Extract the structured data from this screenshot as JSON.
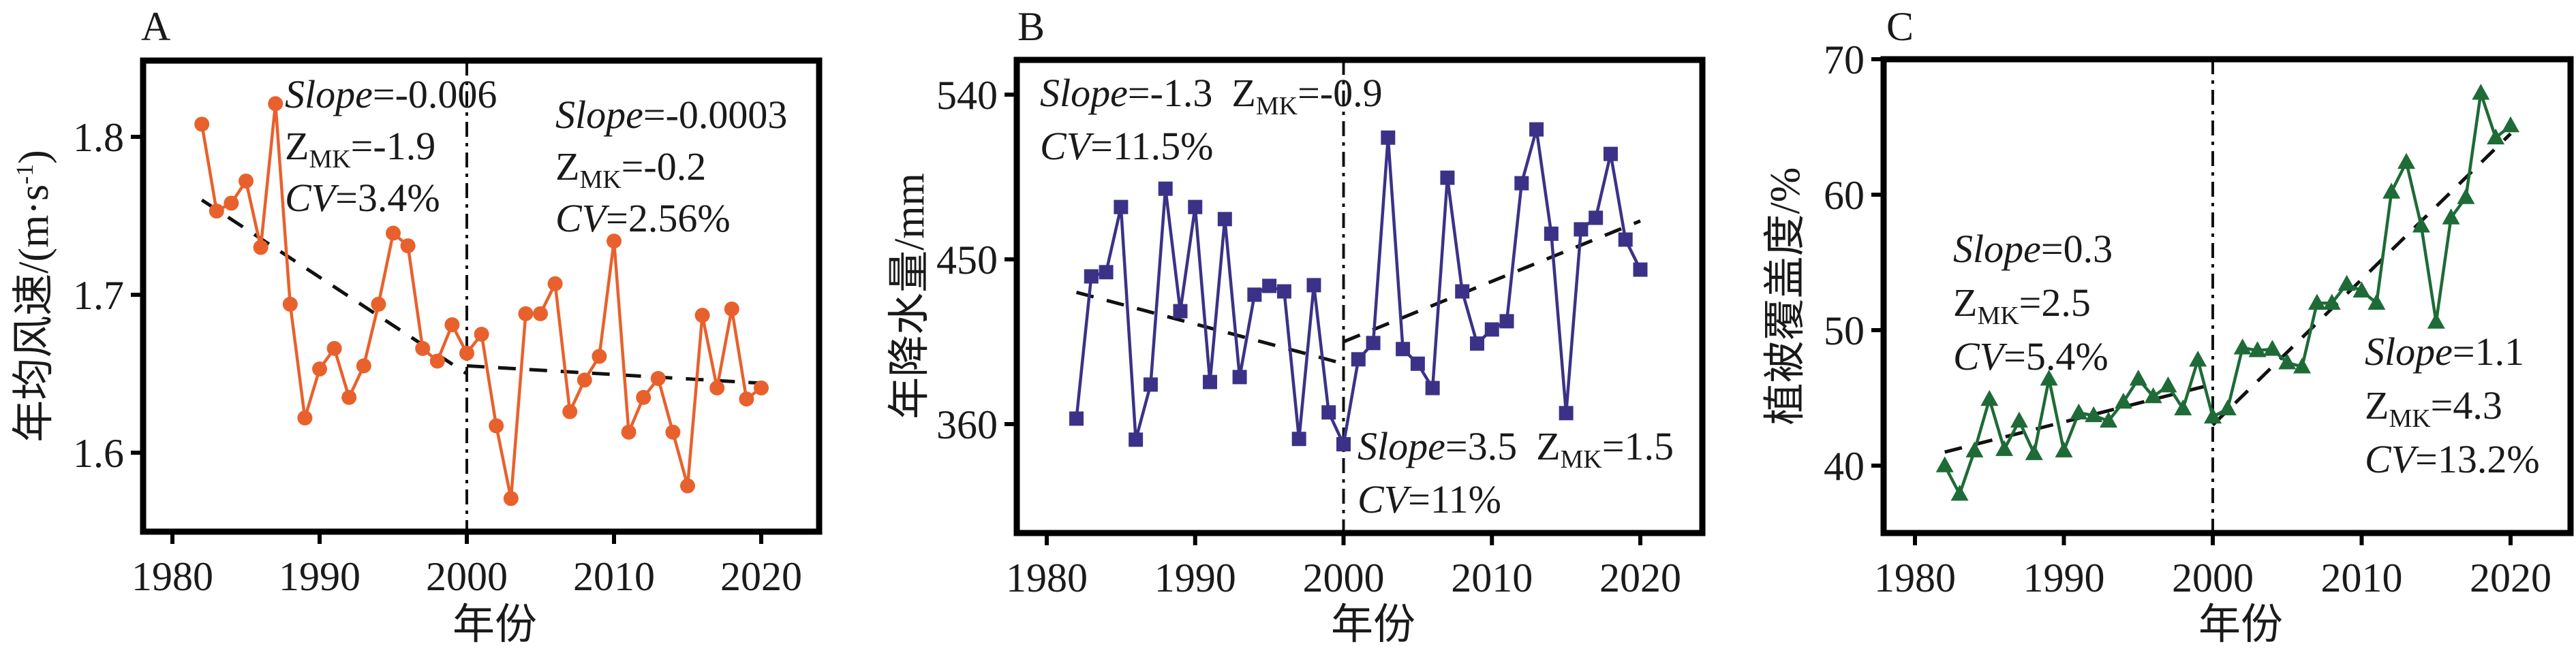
{
  "chart_data": [
    {
      "panel": "A",
      "type": "line",
      "xlabel": "年份",
      "ylabel": "年均风速/(m·s-1)",
      "ylabel_parts": {
        "main": "年均风速/(m·s",
        "sup": "-1",
        "close": ")"
      },
      "xlim": [
        1978,
        2024
      ],
      "ylim": [
        1.55,
        1.848
      ],
      "xticks": [
        1980,
        1990,
        2000,
        2010,
        2020
      ],
      "xtick_labels": [
        "1980",
        "1990",
        "2000",
        "2010",
        "2020"
      ],
      "yticks": [
        1.6,
        1.7,
        1.8
      ],
      "ytick_labels": [
        "1.6",
        "1.7",
        "1.8"
      ],
      "marker": "circle",
      "color": "#e8612c",
      "breakpoint_year": 2000,
      "x": [
        1982,
        1983,
        1984,
        1985,
        1986,
        1987,
        1988,
        1989,
        1990,
        1991,
        1992,
        1993,
        1994,
        1995,
        1996,
        1997,
        1998,
        1999,
        2000,
        2001,
        2002,
        2003,
        2004,
        2005,
        2006,
        2007,
        2008,
        2009,
        2010,
        2011,
        2012,
        2013,
        2014,
        2015,
        2016,
        2017,
        2018,
        2019,
        2020
      ],
      "values": [
        1.808,
        1.753,
        1.758,
        1.772,
        1.73,
        1.821,
        1.694,
        1.622,
        1.653,
        1.666,
        1.635,
        1.655,
        1.694,
        1.739,
        1.731,
        1.666,
        1.658,
        1.681,
        1.663,
        1.675,
        1.617,
        1.571,
        1.688,
        1.688,
        1.707,
        1.626,
        1.646,
        1.661,
        1.734,
        1.613,
        1.635,
        1.647,
        1.613,
        1.579,
        1.687,
        1.641,
        1.691,
        1.634,
        1.641
      ],
      "trends": [
        {
          "x": [
            1982,
            2000
          ],
          "y": [
            1.76,
            1.65
          ]
        },
        {
          "x": [
            2000,
            2020
          ],
          "y": [
            1.655,
            1.644
          ]
        }
      ],
      "annotations": [
        {
          "slope_label": "Slope",
          "slope_value": "=-0.006",
          "z_label": "Z",
          "z_sub": "MK",
          "z_value": "=-1.9",
          "cv_label": "CV",
          "cv_value": "=3.4%"
        },
        {
          "slope_label": "Slope",
          "slope_value": "=-0.0003",
          "z_label": "Z",
          "z_sub": "MK",
          "z_value": "=-0.2",
          "cv_label": "CV",
          "cv_value": "=2.56%"
        }
      ]
    },
    {
      "panel": "B",
      "type": "line",
      "xlabel": "年份",
      "ylabel": "年降水量/mm",
      "xlim": [
        1978,
        2024
      ],
      "ylim": [
        300.5,
        559
      ],
      "xticks": [
        1980,
        1990,
        2000,
        2010,
        2020
      ],
      "xtick_labels": [
        "1980",
        "1990",
        "2000",
        "2010",
        "2020"
      ],
      "yticks": [
        360,
        450,
        540
      ],
      "ytick_labels": [
        "360",
        "450",
        "540"
      ],
      "marker": "square",
      "color": "#3b3287",
      "breakpoint_year": 2000,
      "x": [
        1982,
        1983,
        1984,
        1985,
        1986,
        1987,
        1988,
        1989,
        1990,
        1991,
        1992,
        1993,
        1994,
        1995,
        1996,
        1997,
        1998,
        1999,
        2000,
        2001,
        2002,
        2003,
        2004,
        2005,
        2006,
        2007,
        2008,
        2009,
        2010,
        2011,
        2012,
        2013,
        2014,
        2015,
        2016,
        2017,
        2018,
        2019,
        2020
      ],
      "values": [
        363,
        440.7,
        443,
        478.6,
        351.5,
        381.6,
        488.6,
        421.7,
        478.6,
        383,
        472,
        385.7,
        430.7,
        435.5,
        432.5,
        351.9,
        435.9,
        366.4,
        349,
        395.4,
        404.3,
        516.5,
        401,
        393,
        379.7,
        494.6,
        432.5,
        404,
        411.7,
        416.2,
        491.6,
        521,
        464,
        366,
        466.4,
        472.7,
        507.6,
        460.8,
        444.4
      ],
      "trends": [
        {
          "x": [
            1982,
            2000
          ],
          "y": [
            432,
            393
          ]
        },
        {
          "x": [
            2000,
            2020
          ],
          "y": [
            405,
            471
          ]
        }
      ],
      "annotations": [
        {
          "slope_label": "Slope",
          "slope_value": "=-1.3",
          "z_label": "Z",
          "z_sub": "MK",
          "z_value": "=-0.9",
          "cv_label": "CV",
          "cv_value": "=11.5%"
        },
        {
          "slope_label": "Slope",
          "slope_value": "=3.5",
          "z_label": "Z",
          "z_sub": "MK",
          "z_value": "=1.5",
          "cv_label": "CV",
          "cv_value": "=11%"
        }
      ]
    },
    {
      "panel": "C",
      "type": "line",
      "xlabel": "年份",
      "ylabel": "植被覆盖度/%",
      "xlim": [
        1978,
        2024
      ],
      "ylim": [
        35,
        70
      ],
      "xticks": [
        1980,
        1990,
        2000,
        2010,
        2020
      ],
      "xtick_labels": [
        "1980",
        "1990",
        "2000",
        "2010",
        "2020"
      ],
      "yticks": [
        40,
        50,
        60,
        70
      ],
      "ytick_labels": [
        "40",
        "50",
        "60",
        "70"
      ],
      "marker": "triangle",
      "color": "#1e6b37",
      "breakpoint_year": 2000,
      "x": [
        1982,
        1983,
        1984,
        1985,
        1986,
        1987,
        1988,
        1989,
        1990,
        1991,
        1992,
        1993,
        1994,
        1995,
        1996,
        1997,
        1998,
        1999,
        2000,
        2001,
        2002,
        2003,
        2004,
        2005,
        2006,
        2007,
        2008,
        2009,
        2010,
        2011,
        2012,
        2013,
        2014,
        2015,
        2016,
        2017,
        2018,
        2019,
        2020
      ],
      "values": [
        40.0,
        37.9,
        41.1,
        44.9,
        41.2,
        43.3,
        40.9,
        46.4,
        41.1,
        43.9,
        43.7,
        43.3,
        44.7,
        46.4,
        45.1,
        45.9,
        44.2,
        47.8,
        43.6,
        44.2,
        48.7,
        48.5,
        48.6,
        47.6,
        47.3,
        52.0,
        52.0,
        53.4,
        52.9,
        52.0,
        60.2,
        62.4,
        57.7,
        50.6,
        58.3,
        59.8,
        67.5,
        64.2,
        65.1
      ],
      "trends": [
        {
          "x": [
            1982,
            2000
          ],
          "y": [
            41.0,
            46.0
          ]
        },
        {
          "x": [
            2000,
            2020
          ],
          "y": [
            43.0,
            64.5
          ]
        }
      ],
      "annotations": [
        {
          "slope_label": "Slope",
          "slope_value": "=0.3",
          "z_label": "Z",
          "z_sub": "MK",
          "z_value": "=2.5",
          "cv_label": "CV",
          "cv_value": "=5.4%"
        },
        {
          "slope_label": "Slope",
          "slope_value": "=1.1",
          "z_label": "Z",
          "z_sub": "MK",
          "z_value": "=4.3",
          "cv_label": "CV",
          "cv_value": "=13.2%"
        }
      ]
    }
  ]
}
